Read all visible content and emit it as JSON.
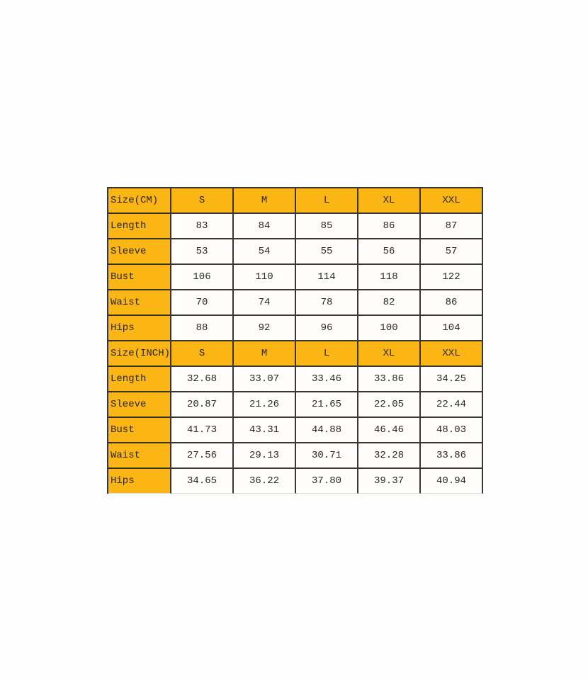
{
  "colors": {
    "accent_yellow": "#fbb615",
    "grid_border": "#3b352d",
    "text": "#2b2722",
    "page_background": "#fefefe"
  },
  "chart_data": {
    "type": "table",
    "sections": [
      {
        "header_label": "Size(CM)",
        "columns": [
          "S",
          "M",
          "L",
          "XL",
          "XXL"
        ],
        "rows": [
          {
            "label": "Length",
            "values": [
              "83",
              "84",
              "85",
              "86",
              "87"
            ]
          },
          {
            "label": "Sleeve",
            "values": [
              "53",
              "54",
              "55",
              "56",
              "57"
            ]
          },
          {
            "label": "Bust",
            "values": [
              "106",
              "110",
              "114",
              "118",
              "122"
            ]
          },
          {
            "label": "Waist",
            "values": [
              "70",
              "74",
              "78",
              "82",
              "86"
            ]
          },
          {
            "label": "Hips",
            "values": [
              "88",
              "92",
              "96",
              "100",
              "104"
            ]
          }
        ]
      },
      {
        "header_label": "Size(INCH)",
        "columns": [
          "S",
          "M",
          "L",
          "XL",
          "XXL"
        ],
        "rows": [
          {
            "label": "Length",
            "values": [
              "32.68",
              "33.07",
              "33.46",
              "33.86",
              "34.25"
            ]
          },
          {
            "label": "Sleeve",
            "values": [
              "20.87",
              "21.26",
              "21.65",
              "22.05",
              "22.44"
            ]
          },
          {
            "label": "Bust",
            "values": [
              "41.73",
              "43.31",
              "44.88",
              "46.46",
              "48.03"
            ]
          },
          {
            "label": "Waist",
            "values": [
              "27.56",
              "29.13",
              "30.71",
              "32.28",
              "33.86"
            ]
          },
          {
            "label": "Hips",
            "values": [
              "34.65",
              "36.22",
              "37.80",
              "39.37",
              "40.94"
            ]
          }
        ]
      }
    ]
  }
}
